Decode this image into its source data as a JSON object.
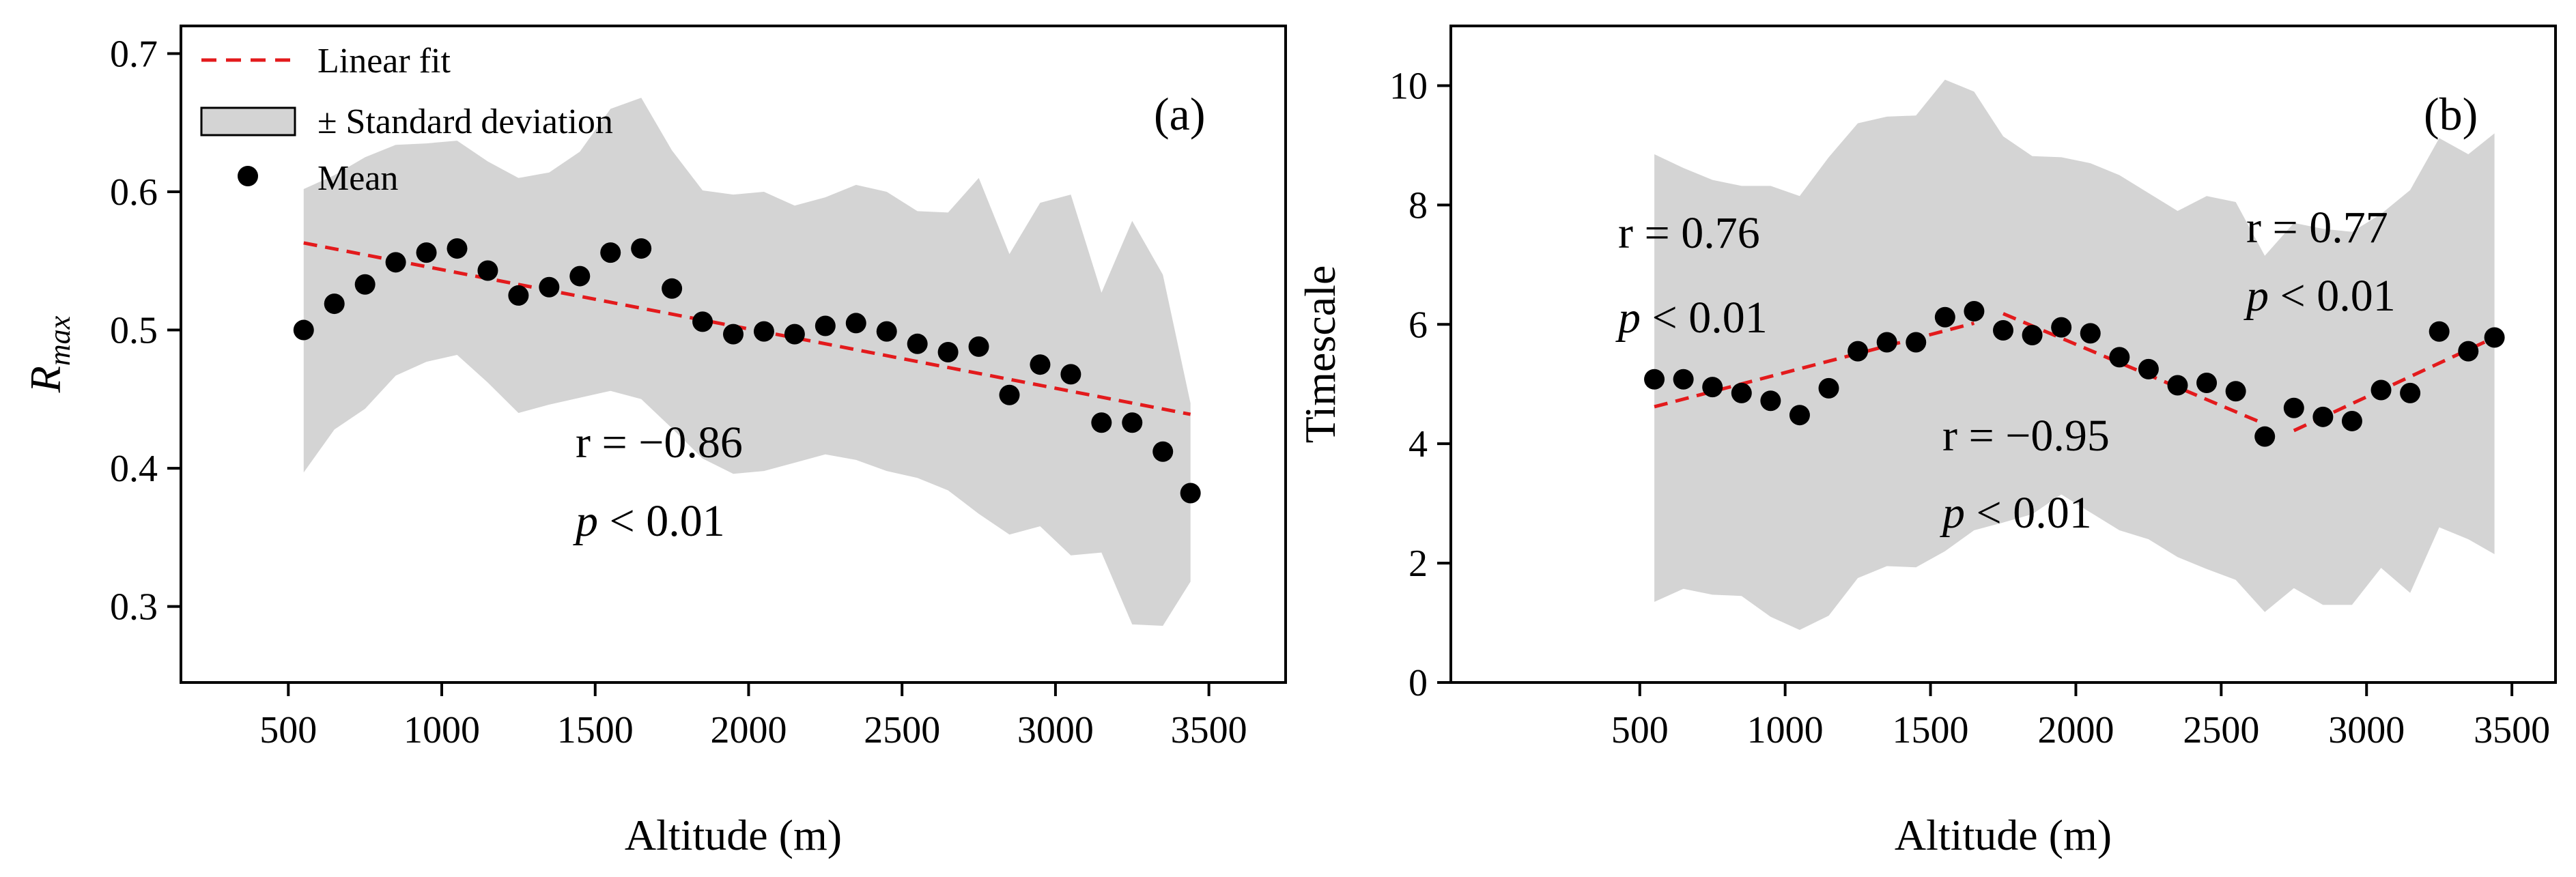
{
  "chart_data": [
    {
      "type": "scatter",
      "panel_label": "(a)",
      "xlabel": "Altitude (m)",
      "ylabel_main": "R",
      "ylabel_sub": "max",
      "xlim": [
        150,
        3750
      ],
      "ylim": [
        0.245,
        0.72
      ],
      "xticks": [
        500,
        1000,
        1500,
        2000,
        2500,
        3000,
        3500
      ],
      "xtick_labels": [
        "500",
        "1000",
        "1500",
        "2000",
        "2500",
        "3000",
        "3500"
      ],
      "yticks": [
        0.3,
        0.4,
        0.5,
        0.6,
        0.7
      ],
      "ytick_labels": [
        "0.3",
        "0.4",
        "0.5",
        "0.6",
        "0.7"
      ],
      "accent_color": "#e31a1c",
      "band_color": "#d4d4d4",
      "x": [
        550,
        650,
        750,
        850,
        950,
        1050,
        1150,
        1250,
        1350,
        1450,
        1550,
        1650,
        1750,
        1850,
        1950,
        2050,
        2150,
        2250,
        2350,
        2450,
        2550,
        2650,
        2750,
        2850,
        2950,
        3050,
        3150,
        3250,
        3350,
        3440
      ],
      "mean": [
        0.5,
        0.519,
        0.533,
        0.549,
        0.556,
        0.559,
        0.543,
        0.525,
        0.531,
        0.539,
        0.556,
        0.559,
        0.53,
        0.506,
        0.497,
        0.499,
        0.497,
        0.503,
        0.505,
        0.499,
        0.49,
        0.484,
        0.488,
        0.453,
        0.475,
        0.468,
        0.433,
        0.433,
        0.412,
        0.382
      ],
      "upper": [
        0.602,
        0.612,
        0.625,
        0.634,
        0.635,
        0.637,
        0.622,
        0.61,
        0.614,
        0.629,
        0.66,
        0.668,
        0.63,
        0.601,
        0.598,
        0.6,
        0.59,
        0.596,
        0.605,
        0.6,
        0.586,
        0.585,
        0.61,
        0.555,
        0.592,
        0.598,
        0.527,
        0.579,
        0.54,
        0.447
      ],
      "lower": [
        0.397,
        0.428,
        0.443,
        0.467,
        0.477,
        0.482,
        0.462,
        0.44,
        0.446,
        0.451,
        0.456,
        0.45,
        0.429,
        0.407,
        0.396,
        0.398,
        0.404,
        0.41,
        0.406,
        0.398,
        0.393,
        0.384,
        0.367,
        0.352,
        0.358,
        0.337,
        0.339,
        0.287,
        0.286,
        0.318
      ],
      "fits": [
        {
          "x": [
            550,
            3440
          ],
          "y": [
            0.563,
            0.439
          ]
        }
      ],
      "annotations": [
        {
          "r_text": "r = −0.86",
          "p_sym": "p",
          "p_rest": " < 0.01"
        }
      ],
      "legend": {
        "placement": "top-left",
        "items": [
          "Linear fit",
          "± Standard deviation",
          "Mean"
        ]
      }
    },
    {
      "type": "scatter",
      "panel_label": "(b)",
      "xlabel": "Altitude (m)",
      "ylabel": "Timescale",
      "xlim": [
        -150,
        3650
      ],
      "ylim": [
        0,
        11
      ],
      "xticks": [
        500,
        1000,
        1500,
        2000,
        2500,
        3000,
        3500
      ],
      "xtick_labels": [
        "500",
        "1000",
        "1500",
        "2000",
        "2500",
        "3000",
        "3500"
      ],
      "yticks": [
        0,
        2,
        4,
        6,
        8,
        10
      ],
      "ytick_labels": [
        "0",
        "2",
        "4",
        "6",
        "8",
        "10"
      ],
      "accent_color": "#e31a1c",
      "band_color": "#d4d4d4",
      "x": [
        550,
        650,
        750,
        850,
        950,
        1050,
        1150,
        1250,
        1350,
        1450,
        1550,
        1650,
        1750,
        1850,
        1950,
        2050,
        2150,
        2250,
        2350,
        2450,
        2550,
        2650,
        2750,
        2850,
        2950,
        3050,
        3150,
        3250,
        3350,
        3440
      ],
      "mean": [
        5.08,
        5.08,
        4.95,
        4.85,
        4.72,
        4.48,
        4.93,
        5.55,
        5.7,
        5.7,
        6.12,
        6.22,
        5.9,
        5.82,
        5.95,
        5.85,
        5.45,
        5.25,
        4.98,
        5.02,
        4.88,
        4.12,
        4.6,
        4.45,
        4.38,
        4.9,
        4.85,
        5.88,
        5.55,
        5.78
      ],
      "upper": [
        8.85,
        8.62,
        8.42,
        8.32,
        8.32,
        8.15,
        8.8,
        9.37,
        9.48,
        9.5,
        10.1,
        9.9,
        9.15,
        8.82,
        8.8,
        8.7,
        8.5,
        8.2,
        7.9,
        8.15,
        8.05,
        7.15,
        7.7,
        7.6,
        7.55,
        7.85,
        8.25,
        9.12,
        8.85,
        9.2
      ],
      "lower": [
        1.35,
        1.57,
        1.47,
        1.45,
        1.1,
        0.88,
        1.12,
        1.75,
        1.95,
        1.93,
        2.2,
        2.55,
        2.68,
        2.82,
        3.15,
        2.85,
        2.55,
        2.4,
        2.1,
        1.9,
        1.72,
        1.18,
        1.58,
        1.3,
        1.3,
        1.92,
        1.5,
        2.6,
        2.4,
        2.15
      ],
      "fits": [
        {
          "x": [
            550,
            1650
          ],
          "y": [
            4.62,
            6.02
          ]
        },
        {
          "x": [
            1750,
            2650
          ],
          "y": [
            6.18,
            4.33
          ]
        },
        {
          "x": [
            2750,
            3440
          ],
          "y": [
            4.22,
            5.78
          ]
        }
      ],
      "annotations": [
        {
          "r_text": "r = 0.76",
          "p_sym": "p",
          "p_rest": " < 0.01"
        },
        {
          "r_text": "r = −0.95",
          "p_sym": "p",
          "p_rest": " < 0.01"
        },
        {
          "r_text": "r = 0.77",
          "p_sym": "p",
          "p_rest": " < 0.01"
        }
      ]
    }
  ]
}
